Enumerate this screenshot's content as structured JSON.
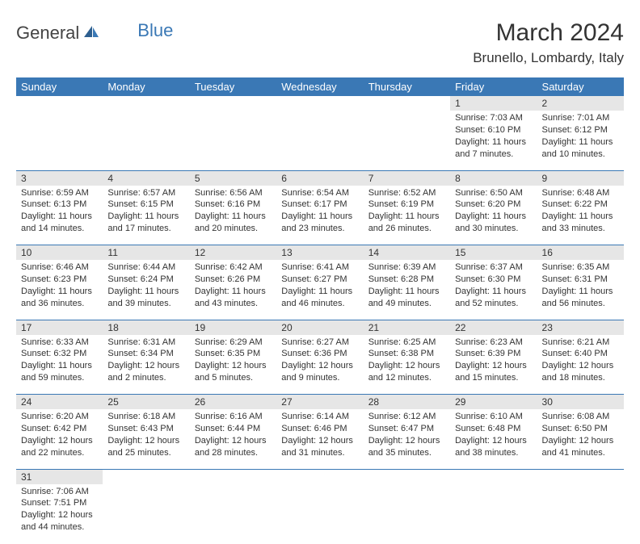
{
  "logo": {
    "general": "General",
    "blue": "Blue"
  },
  "title": "March 2024",
  "location": "Brunello, Lombardy, Italy",
  "colors": {
    "header_bg": "#3a78b5",
    "header_text": "#ffffff",
    "daynum_bg": "#e6e6e6",
    "border": "#3a78b5",
    "text": "#333333",
    "logo_blue": "#3a78b5"
  },
  "day_headers": [
    "Sunday",
    "Monday",
    "Tuesday",
    "Wednesday",
    "Thursday",
    "Friday",
    "Saturday"
  ],
  "weeks": [
    [
      null,
      null,
      null,
      null,
      null,
      {
        "n": "1",
        "sr": "Sunrise: 7:03 AM",
        "ss": "Sunset: 6:10 PM",
        "dl": "Daylight: 11 hours and 7 minutes."
      },
      {
        "n": "2",
        "sr": "Sunrise: 7:01 AM",
        "ss": "Sunset: 6:12 PM",
        "dl": "Daylight: 11 hours and 10 minutes."
      }
    ],
    [
      {
        "n": "3",
        "sr": "Sunrise: 6:59 AM",
        "ss": "Sunset: 6:13 PM",
        "dl": "Daylight: 11 hours and 14 minutes."
      },
      {
        "n": "4",
        "sr": "Sunrise: 6:57 AM",
        "ss": "Sunset: 6:15 PM",
        "dl": "Daylight: 11 hours and 17 minutes."
      },
      {
        "n": "5",
        "sr": "Sunrise: 6:56 AM",
        "ss": "Sunset: 6:16 PM",
        "dl": "Daylight: 11 hours and 20 minutes."
      },
      {
        "n": "6",
        "sr": "Sunrise: 6:54 AM",
        "ss": "Sunset: 6:17 PM",
        "dl": "Daylight: 11 hours and 23 minutes."
      },
      {
        "n": "7",
        "sr": "Sunrise: 6:52 AM",
        "ss": "Sunset: 6:19 PM",
        "dl": "Daylight: 11 hours and 26 minutes."
      },
      {
        "n": "8",
        "sr": "Sunrise: 6:50 AM",
        "ss": "Sunset: 6:20 PM",
        "dl": "Daylight: 11 hours and 30 minutes."
      },
      {
        "n": "9",
        "sr": "Sunrise: 6:48 AM",
        "ss": "Sunset: 6:22 PM",
        "dl": "Daylight: 11 hours and 33 minutes."
      }
    ],
    [
      {
        "n": "10",
        "sr": "Sunrise: 6:46 AM",
        "ss": "Sunset: 6:23 PM",
        "dl": "Daylight: 11 hours and 36 minutes."
      },
      {
        "n": "11",
        "sr": "Sunrise: 6:44 AM",
        "ss": "Sunset: 6:24 PM",
        "dl": "Daylight: 11 hours and 39 minutes."
      },
      {
        "n": "12",
        "sr": "Sunrise: 6:42 AM",
        "ss": "Sunset: 6:26 PM",
        "dl": "Daylight: 11 hours and 43 minutes."
      },
      {
        "n": "13",
        "sr": "Sunrise: 6:41 AM",
        "ss": "Sunset: 6:27 PM",
        "dl": "Daylight: 11 hours and 46 minutes."
      },
      {
        "n": "14",
        "sr": "Sunrise: 6:39 AM",
        "ss": "Sunset: 6:28 PM",
        "dl": "Daylight: 11 hours and 49 minutes."
      },
      {
        "n": "15",
        "sr": "Sunrise: 6:37 AM",
        "ss": "Sunset: 6:30 PM",
        "dl": "Daylight: 11 hours and 52 minutes."
      },
      {
        "n": "16",
        "sr": "Sunrise: 6:35 AM",
        "ss": "Sunset: 6:31 PM",
        "dl": "Daylight: 11 hours and 56 minutes."
      }
    ],
    [
      {
        "n": "17",
        "sr": "Sunrise: 6:33 AM",
        "ss": "Sunset: 6:32 PM",
        "dl": "Daylight: 11 hours and 59 minutes."
      },
      {
        "n": "18",
        "sr": "Sunrise: 6:31 AM",
        "ss": "Sunset: 6:34 PM",
        "dl": "Daylight: 12 hours and 2 minutes."
      },
      {
        "n": "19",
        "sr": "Sunrise: 6:29 AM",
        "ss": "Sunset: 6:35 PM",
        "dl": "Daylight: 12 hours and 5 minutes."
      },
      {
        "n": "20",
        "sr": "Sunrise: 6:27 AM",
        "ss": "Sunset: 6:36 PM",
        "dl": "Daylight: 12 hours and 9 minutes."
      },
      {
        "n": "21",
        "sr": "Sunrise: 6:25 AM",
        "ss": "Sunset: 6:38 PM",
        "dl": "Daylight: 12 hours and 12 minutes."
      },
      {
        "n": "22",
        "sr": "Sunrise: 6:23 AM",
        "ss": "Sunset: 6:39 PM",
        "dl": "Daylight: 12 hours and 15 minutes."
      },
      {
        "n": "23",
        "sr": "Sunrise: 6:21 AM",
        "ss": "Sunset: 6:40 PM",
        "dl": "Daylight: 12 hours and 18 minutes."
      }
    ],
    [
      {
        "n": "24",
        "sr": "Sunrise: 6:20 AM",
        "ss": "Sunset: 6:42 PM",
        "dl": "Daylight: 12 hours and 22 minutes."
      },
      {
        "n": "25",
        "sr": "Sunrise: 6:18 AM",
        "ss": "Sunset: 6:43 PM",
        "dl": "Daylight: 12 hours and 25 minutes."
      },
      {
        "n": "26",
        "sr": "Sunrise: 6:16 AM",
        "ss": "Sunset: 6:44 PM",
        "dl": "Daylight: 12 hours and 28 minutes."
      },
      {
        "n": "27",
        "sr": "Sunrise: 6:14 AM",
        "ss": "Sunset: 6:46 PM",
        "dl": "Daylight: 12 hours and 31 minutes."
      },
      {
        "n": "28",
        "sr": "Sunrise: 6:12 AM",
        "ss": "Sunset: 6:47 PM",
        "dl": "Daylight: 12 hours and 35 minutes."
      },
      {
        "n": "29",
        "sr": "Sunrise: 6:10 AM",
        "ss": "Sunset: 6:48 PM",
        "dl": "Daylight: 12 hours and 38 minutes."
      },
      {
        "n": "30",
        "sr": "Sunrise: 6:08 AM",
        "ss": "Sunset: 6:50 PM",
        "dl": "Daylight: 12 hours and 41 minutes."
      }
    ],
    [
      {
        "n": "31",
        "sr": "Sunrise: 7:06 AM",
        "ss": "Sunset: 7:51 PM",
        "dl": "Daylight: 12 hours and 44 minutes."
      },
      null,
      null,
      null,
      null,
      null,
      null
    ]
  ]
}
